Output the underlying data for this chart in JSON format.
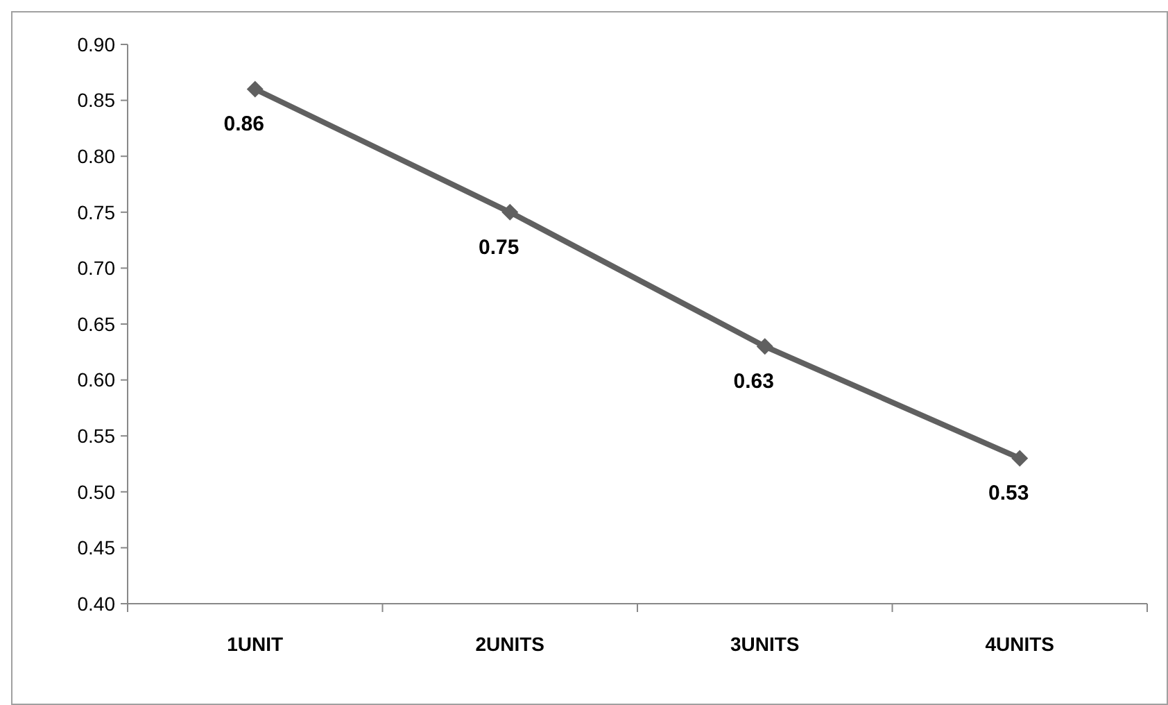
{
  "chart_data": {
    "type": "line",
    "categories": [
      "1UNIT",
      "2UNITS",
      "3UNITS",
      "4UNITS"
    ],
    "series": [
      {
        "color": "#606060",
        "values": [
          0.86,
          0.75,
          0.63,
          0.53
        ]
      }
    ],
    "ylim": [
      0.4,
      0.9
    ],
    "yticks": [
      {
        "value": 0.4,
        "label": "0.40"
      },
      {
        "value": 0.45,
        "label": "0.45"
      },
      {
        "value": 0.5,
        "label": "0.50"
      },
      {
        "value": 0.55,
        "label": "0.55"
      },
      {
        "value": 0.6,
        "label": "0.60"
      },
      {
        "value": 0.65,
        "label": "0.65"
      },
      {
        "value": 0.7,
        "label": "0.70"
      },
      {
        "value": 0.75,
        "label": "0.75"
      },
      {
        "value": 0.8,
        "label": "0.80"
      },
      {
        "value": 0.85,
        "label": "0.85"
      },
      {
        "value": 0.9,
        "label": "0.90"
      }
    ],
    "grid": false,
    "marker": "diamond",
    "line_style": "solid",
    "data_labels": true
  }
}
